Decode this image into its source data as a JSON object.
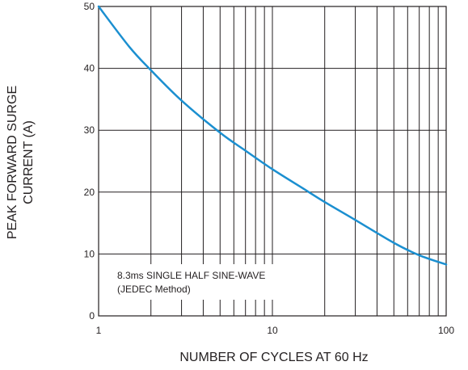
{
  "chart_data": {
    "type": "line",
    "x_scale": "log",
    "xlim": [
      1,
      100
    ],
    "ylim": [
      0,
      50
    ],
    "x_ticks": [
      "1",
      "10",
      "100"
    ],
    "y_ticks": [
      "0",
      "10",
      "20",
      "30",
      "40",
      "50"
    ],
    "xlabel": "NUMBER OF CYCLES AT 60 Hz",
    "ylabel_lines": [
      "PEAK FORWARD SURGE",
      "CURRENT (A)"
    ],
    "annotation_lines": [
      "8.3ms SINGLE HALF SINE-WAVE",
      "(JEDEC Method)"
    ],
    "grid": true,
    "line_color": "#1b8fd0",
    "series": [
      {
        "x": [
          1,
          1.5,
          2,
          3,
          5,
          7,
          10,
          15,
          20,
          30,
          50,
          70,
          100
        ],
        "values": [
          50,
          43.5,
          39.7,
          34.8,
          29.6,
          26.7,
          23.7,
          20.6,
          18.4,
          15.5,
          11.8,
          9.8,
          8.3
        ]
      }
    ]
  }
}
